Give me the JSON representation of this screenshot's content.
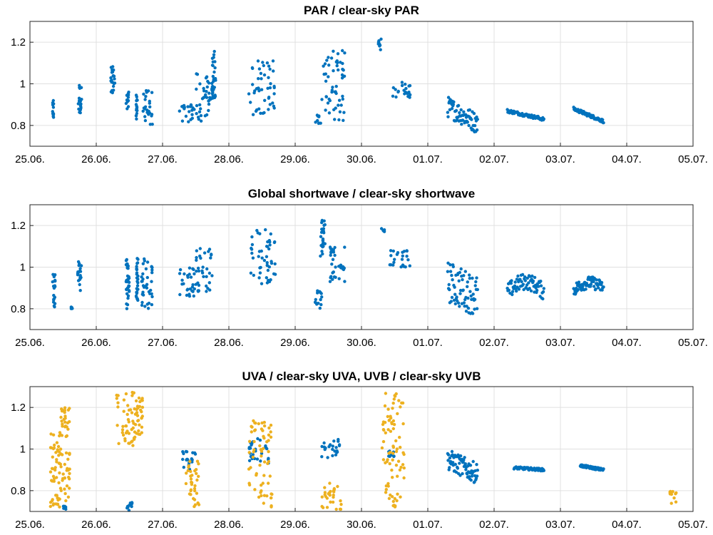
{
  "colors": {
    "blue": "#0072BD",
    "orange": "#EDB120",
    "grid": "#E0E0E0",
    "axis": "#262626"
  },
  "chart_data": [
    {
      "type": "scatter",
      "title": "PAR / clear-sky PAR",
      "xlabel": "",
      "ylabel": "",
      "xlim": [
        0,
        10
      ],
      "ylim": [
        0.7,
        1.3
      ],
      "x_ticks": [
        0,
        1,
        2,
        3,
        4,
        5,
        6,
        7,
        8,
        9,
        10
      ],
      "x_tick_labels": [
        "25.06.",
        "26.06.",
        "27.06.",
        "28.06.",
        "29.06.",
        "30.06.",
        "01.07.",
        "02.07.",
        "03.07.",
        "04.07.",
        "05.07."
      ],
      "y_ticks": [
        0.8,
        1.0,
        1.2
      ],
      "y_tick_labels": [
        "0.8",
        "1",
        "1.2"
      ],
      "grid": true,
      "series": [
        {
          "color": "#0072BD",
          "clusters": [
            {
              "x": [
                0.34,
                0.36
              ],
              "y": [
                0.82,
                0.92
              ]
            },
            {
              "x": [
                0.72,
                0.78
              ],
              "y": [
                0.86,
                1.0
              ]
            },
            {
              "x": [
                1.22,
                1.28
              ],
              "y": [
                0.92,
                1.09
              ]
            },
            {
              "x": [
                1.45,
                1.5
              ],
              "y": [
                0.88,
                0.96
              ]
            },
            {
              "x": [
                1.6,
                1.62
              ],
              "y": [
                0.83,
                0.96
              ]
            },
            {
              "x": [
                1.7,
                1.85
              ],
              "y": [
                0.8,
                0.97
              ]
            },
            {
              "x": [
                2.25,
                2.5
              ],
              "y": [
                0.81,
                0.9
              ]
            },
            {
              "x": [
                2.5,
                2.75
              ],
              "y": [
                0.82,
                1.05
              ]
            },
            {
              "x": [
                2.75,
                2.8
              ],
              "y": [
                0.92,
                1.16
              ]
            },
            {
              "x": [
                3.3,
                3.7
              ],
              "y": [
                0.85,
                1.12
              ]
            },
            {
              "x": [
                4.3,
                4.4
              ],
              "y": [
                0.81,
                0.85
              ]
            },
            {
              "x": [
                4.4,
                4.75
              ],
              "y": [
                0.82,
                1.16
              ]
            },
            {
              "x": [
                5.25,
                5.3
              ],
              "y": [
                1.16,
                1.22
              ]
            },
            {
              "x": [
                5.45,
                5.75
              ],
              "y": [
                0.93,
                1.01
              ]
            }
          ],
          "trends": [
            {
              "x": [
                6.3,
                6.75
              ],
              "y": [
                0.89,
                0.81
              ],
              "spread": 0.05
            },
            {
              "x": [
                7.2,
                7.75
              ],
              "y": [
                0.87,
                0.83
              ],
              "spread": 0.008
            },
            {
              "x": [
                8.2,
                8.65
              ],
              "y": [
                0.88,
                0.82
              ],
              "spread": 0.008
            }
          ]
        }
      ]
    },
    {
      "type": "scatter",
      "title": "Global shortwave / clear-sky shortwave",
      "xlabel": "",
      "ylabel": "",
      "xlim": [
        0,
        10
      ],
      "ylim": [
        0.7,
        1.3
      ],
      "x_ticks": [
        0,
        1,
        2,
        3,
        4,
        5,
        6,
        7,
        8,
        9,
        10
      ],
      "x_tick_labels": [
        "25.06.",
        "26.06.",
        "27.06.",
        "28.06.",
        "29.06.",
        "30.06.",
        "01.07.",
        "02.07.",
        "03.07.",
        "04.07.",
        "05.07."
      ],
      "y_ticks": [
        0.8,
        1.0,
        1.2
      ],
      "y_tick_labels": [
        "0.8",
        "1",
        "1.2"
      ],
      "grid": true,
      "series": [
        {
          "color": "#0072BD",
          "clusters": [
            {
              "x": [
                0.34,
                0.38
              ],
              "y": [
                0.8,
                0.97
              ]
            },
            {
              "x": [
                0.62,
                0.64
              ],
              "y": [
                0.8,
                0.81
              ]
            },
            {
              "x": [
                0.72,
                0.78
              ],
              "y": [
                0.88,
                1.03
              ]
            },
            {
              "x": [
                1.45,
                1.5
              ],
              "y": [
                0.8,
                1.05
              ]
            },
            {
              "x": [
                1.6,
                1.63
              ],
              "y": [
                0.83,
                1.05
              ]
            },
            {
              "x": [
                1.68,
                1.85
              ],
              "y": [
                0.8,
                1.05
              ]
            },
            {
              "x": [
                2.25,
                2.5
              ],
              "y": [
                0.86,
                1.0
              ]
            },
            {
              "x": [
                2.5,
                2.75
              ],
              "y": [
                0.88,
                1.09
              ]
            },
            {
              "x": [
                3.3,
                3.7
              ],
              "y": [
                0.92,
                1.19
              ]
            },
            {
              "x": [
                4.3,
                4.4
              ],
              "y": [
                0.8,
                0.9
              ]
            },
            {
              "x": [
                4.38,
                4.45
              ],
              "y": [
                1.05,
                1.24
              ]
            },
            {
              "x": [
                4.5,
                4.75
              ],
              "y": [
                0.93,
                1.12
              ]
            },
            {
              "x": [
                5.3,
                5.35
              ],
              "y": [
                1.17,
                1.19
              ]
            },
            {
              "x": [
                5.38,
                5.75
              ],
              "y": [
                1.0,
                1.08
              ]
            }
          ],
          "trends": [
            {
              "x": [
                6.3,
                6.75
              ],
              "y": [
                0.93,
                0.86
              ],
              "spread": 0.1
            },
            {
              "x": [
                7.2,
                7.75
              ],
              "y": [
                0.88,
                0.88
              ],
              "spread": 0.04,
              "arch": 0.05
            },
            {
              "x": [
                8.2,
                8.65
              ],
              "y": [
                0.89,
                0.9
              ],
              "spread": 0.03,
              "arch": 0.03
            }
          ]
        }
      ]
    },
    {
      "type": "scatter",
      "title": "UVA / clear-sky UVA, UVB / clear-sky UVB",
      "xlabel": "",
      "ylabel": "",
      "xlim": [
        0,
        10
      ],
      "ylim": [
        0.7,
        1.3
      ],
      "x_ticks": [
        0,
        1,
        2,
        3,
        4,
        5,
        6,
        7,
        8,
        9,
        10
      ],
      "x_tick_labels": [
        "25.06.",
        "26.06.",
        "27.06.",
        "28.06.",
        "29.06.",
        "30.06.",
        "01.07.",
        "02.07.",
        "03.07.",
        "04.07.",
        "05.07."
      ],
      "y_ticks": [
        0.8,
        1.0,
        1.2
      ],
      "y_tick_labels": [
        "0.8",
        "1",
        "1.2"
      ],
      "grid": true,
      "series": [
        {
          "color": "#0072BD",
          "clusters": [
            {
              "x": [
                0.5,
                0.55
              ],
              "y": [
                0.71,
                0.73
              ]
            },
            {
              "x": [
                1.45,
                1.55
              ],
              "y": [
                0.7,
                0.75
              ]
            },
            {
              "x": [
                2.3,
                2.5
              ],
              "y": [
                0.9,
                1.0
              ]
            },
            {
              "x": [
                3.3,
                3.6
              ],
              "y": [
                0.92,
                1.05
              ]
            },
            {
              "x": [
                4.4,
                4.7
              ],
              "y": [
                0.95,
                1.05
              ]
            },
            {
              "x": [
                5.4,
                5.5
              ],
              "y": [
                0.96,
                1.01
              ]
            }
          ],
          "trends": [
            {
              "x": [
                6.3,
                6.75
              ],
              "y": [
                0.95,
                0.88
              ],
              "spread": 0.05
            },
            {
              "x": [
                7.3,
                7.75
              ],
              "y": [
                0.91,
                0.9
              ],
              "spread": 0.006
            },
            {
              "x": [
                8.3,
                8.65
              ],
              "y": [
                0.92,
                0.9
              ],
              "spread": 0.006
            }
          ]
        },
        {
          "color": "#EDB120",
          "clusters": [
            {
              "x": [
                0.3,
                0.45
              ],
              "y": [
                0.72,
                1.08
              ]
            },
            {
              "x": [
                0.45,
                0.6
              ],
              "y": [
                0.75,
                1.2
              ]
            },
            {
              "x": [
                1.3,
                1.6
              ],
              "y": [
                1.0,
                1.3
              ]
            },
            {
              "x": [
                1.6,
                1.7
              ],
              "y": [
                1.05,
                1.25
              ]
            },
            {
              "x": [
                2.35,
                2.55
              ],
              "y": [
                0.72,
                0.95
              ]
            },
            {
              "x": [
                3.3,
                3.65
              ],
              "y": [
                0.72,
                1.14
              ]
            },
            {
              "x": [
                4.4,
                4.7
              ],
              "y": [
                0.71,
                0.85
              ]
            },
            {
              "x": [
                5.3,
                5.65
              ],
              "y": [
                0.72,
                1.27
              ]
            },
            {
              "x": [
                9.65,
                9.75
              ],
              "y": [
                0.73,
                0.8
              ]
            }
          ]
        }
      ]
    }
  ]
}
